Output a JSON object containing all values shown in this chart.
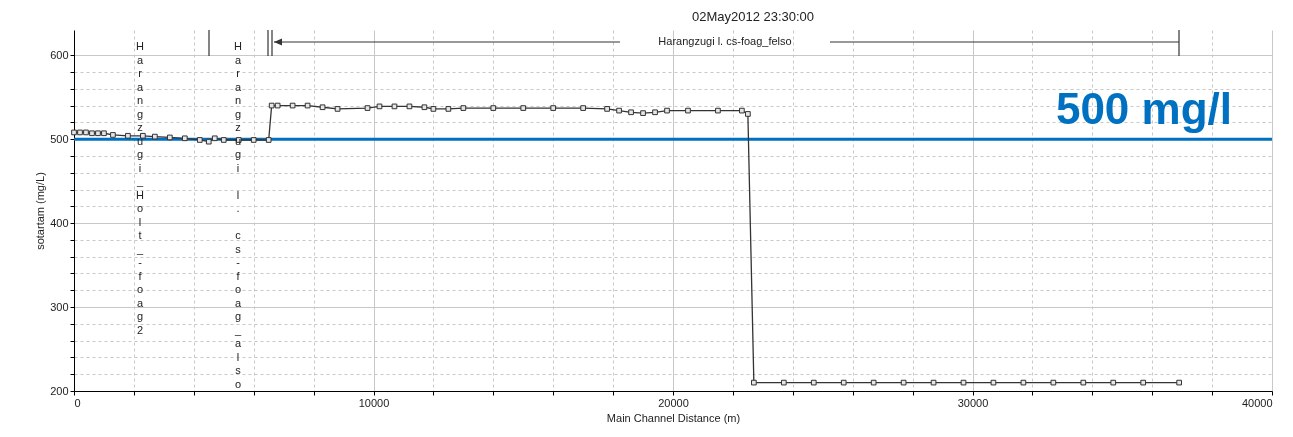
{
  "chart_data": {
    "type": "line",
    "title": "02May2012 23:30:00",
    "xlabel": "Main Channel Distance (m)",
    "ylabel": "sotartam (mg/L)",
    "x": [
      0,
      200,
      400,
      600,
      800,
      1000,
      1300,
      1800,
      2300,
      2700,
      3200,
      3700,
      4200,
      4500,
      4700,
      5000,
      5500,
      6000,
      6500,
      6600,
      6800,
      7300,
      7800,
      8300,
      8800,
      9800,
      10200,
      10700,
      11200,
      11700,
      12000,
      12500,
      13000,
      14000,
      15000,
      16000,
      17000,
      17800,
      18200,
      18600,
      19000,
      19400,
      19800,
      20500,
      21500,
      22300,
      22500,
      22700,
      23700,
      24700,
      25700,
      26700,
      27700,
      28700,
      29700,
      30700,
      31700,
      32700,
      33700,
      34700,
      35700,
      36900
    ],
    "values": [
      508,
      508,
      508,
      507,
      507,
      507,
      505,
      504,
      504,
      503,
      502,
      501,
      499,
      497,
      501,
      499,
      499,
      499,
      499,
      540,
      540,
      540,
      540,
      538,
      536,
      537,
      539,
      539,
      539,
      538,
      536,
      536,
      537,
      537,
      537,
      537,
      537,
      536,
      534,
      532,
      531,
      532,
      534,
      534,
      534,
      534,
      530,
      210,
      210,
      210,
      210,
      210,
      210,
      210,
      210,
      210,
      210,
      210,
      210,
      210,
      210,
      210
    ],
    "color": "#333333",
    "marker": "square",
    "xlim": [
      0,
      40000
    ],
    "ylim": [
      200,
      630
    ],
    "xticks": [
      0,
      {
        "value": 2000,
        "label": null
      },
      {
        "value": 4000,
        "label": null
      },
      {
        "value": 6000,
        "label": null
      },
      {
        "value": 8000,
        "label": null
      },
      10000,
      {
        "value": 12000,
        "label": null
      },
      {
        "value": 14000,
        "label": null
      },
      {
        "value": 16000,
        "label": null
      },
      {
        "value": 18000,
        "label": null
      },
      20000,
      {
        "value": 22000,
        "label": null
      },
      {
        "value": 24000,
        "label": null
      },
      {
        "value": 26000,
        "label": null
      },
      {
        "value": 28000,
        "label": null
      },
      30000,
      {
        "value": 32000,
        "label": null
      },
      {
        "value": 34000,
        "label": null
      },
      {
        "value": 36000,
        "label": null
      },
      {
        "value": 38000,
        "label": null
      },
      40000
    ],
    "yticks": [
      200,
      {
        "value": 220,
        "label": null
      },
      {
        "value": 240,
        "label": null
      },
      {
        "value": 260,
        "label": null
      },
      {
        "value": 280,
        "label": null
      },
      300,
      {
        "value": 320,
        "label": null
      },
      {
        "value": 340,
        "label": null
      },
      {
        "value": 360,
        "label": null
      },
      {
        "value": 380,
        "label": null
      },
      400,
      {
        "value": 420,
        "label": null
      },
      {
        "value": 440,
        "label": null
      },
      {
        "value": 460,
        "label": null
      },
      {
        "value": 480,
        "label": null
      },
      500,
      {
        "value": 520,
        "label": null
      },
      {
        "value": 540,
        "label": null
      },
      {
        "value": 560,
        "label": null
      },
      {
        "value": 580,
        "label": null
      },
      600
    ],
    "grid": true,
    "ref_lines": [
      {
        "axis": "y",
        "value": 500,
        "label": "500 mg/l",
        "color": "#0070c0"
      }
    ],
    "annotations": [
      "Harangzugi_Holt_-foag2",
      "Harangzugi l. cs-foag_also",
      "Harangzugi l. cs-foag_felso"
    ]
  }
}
